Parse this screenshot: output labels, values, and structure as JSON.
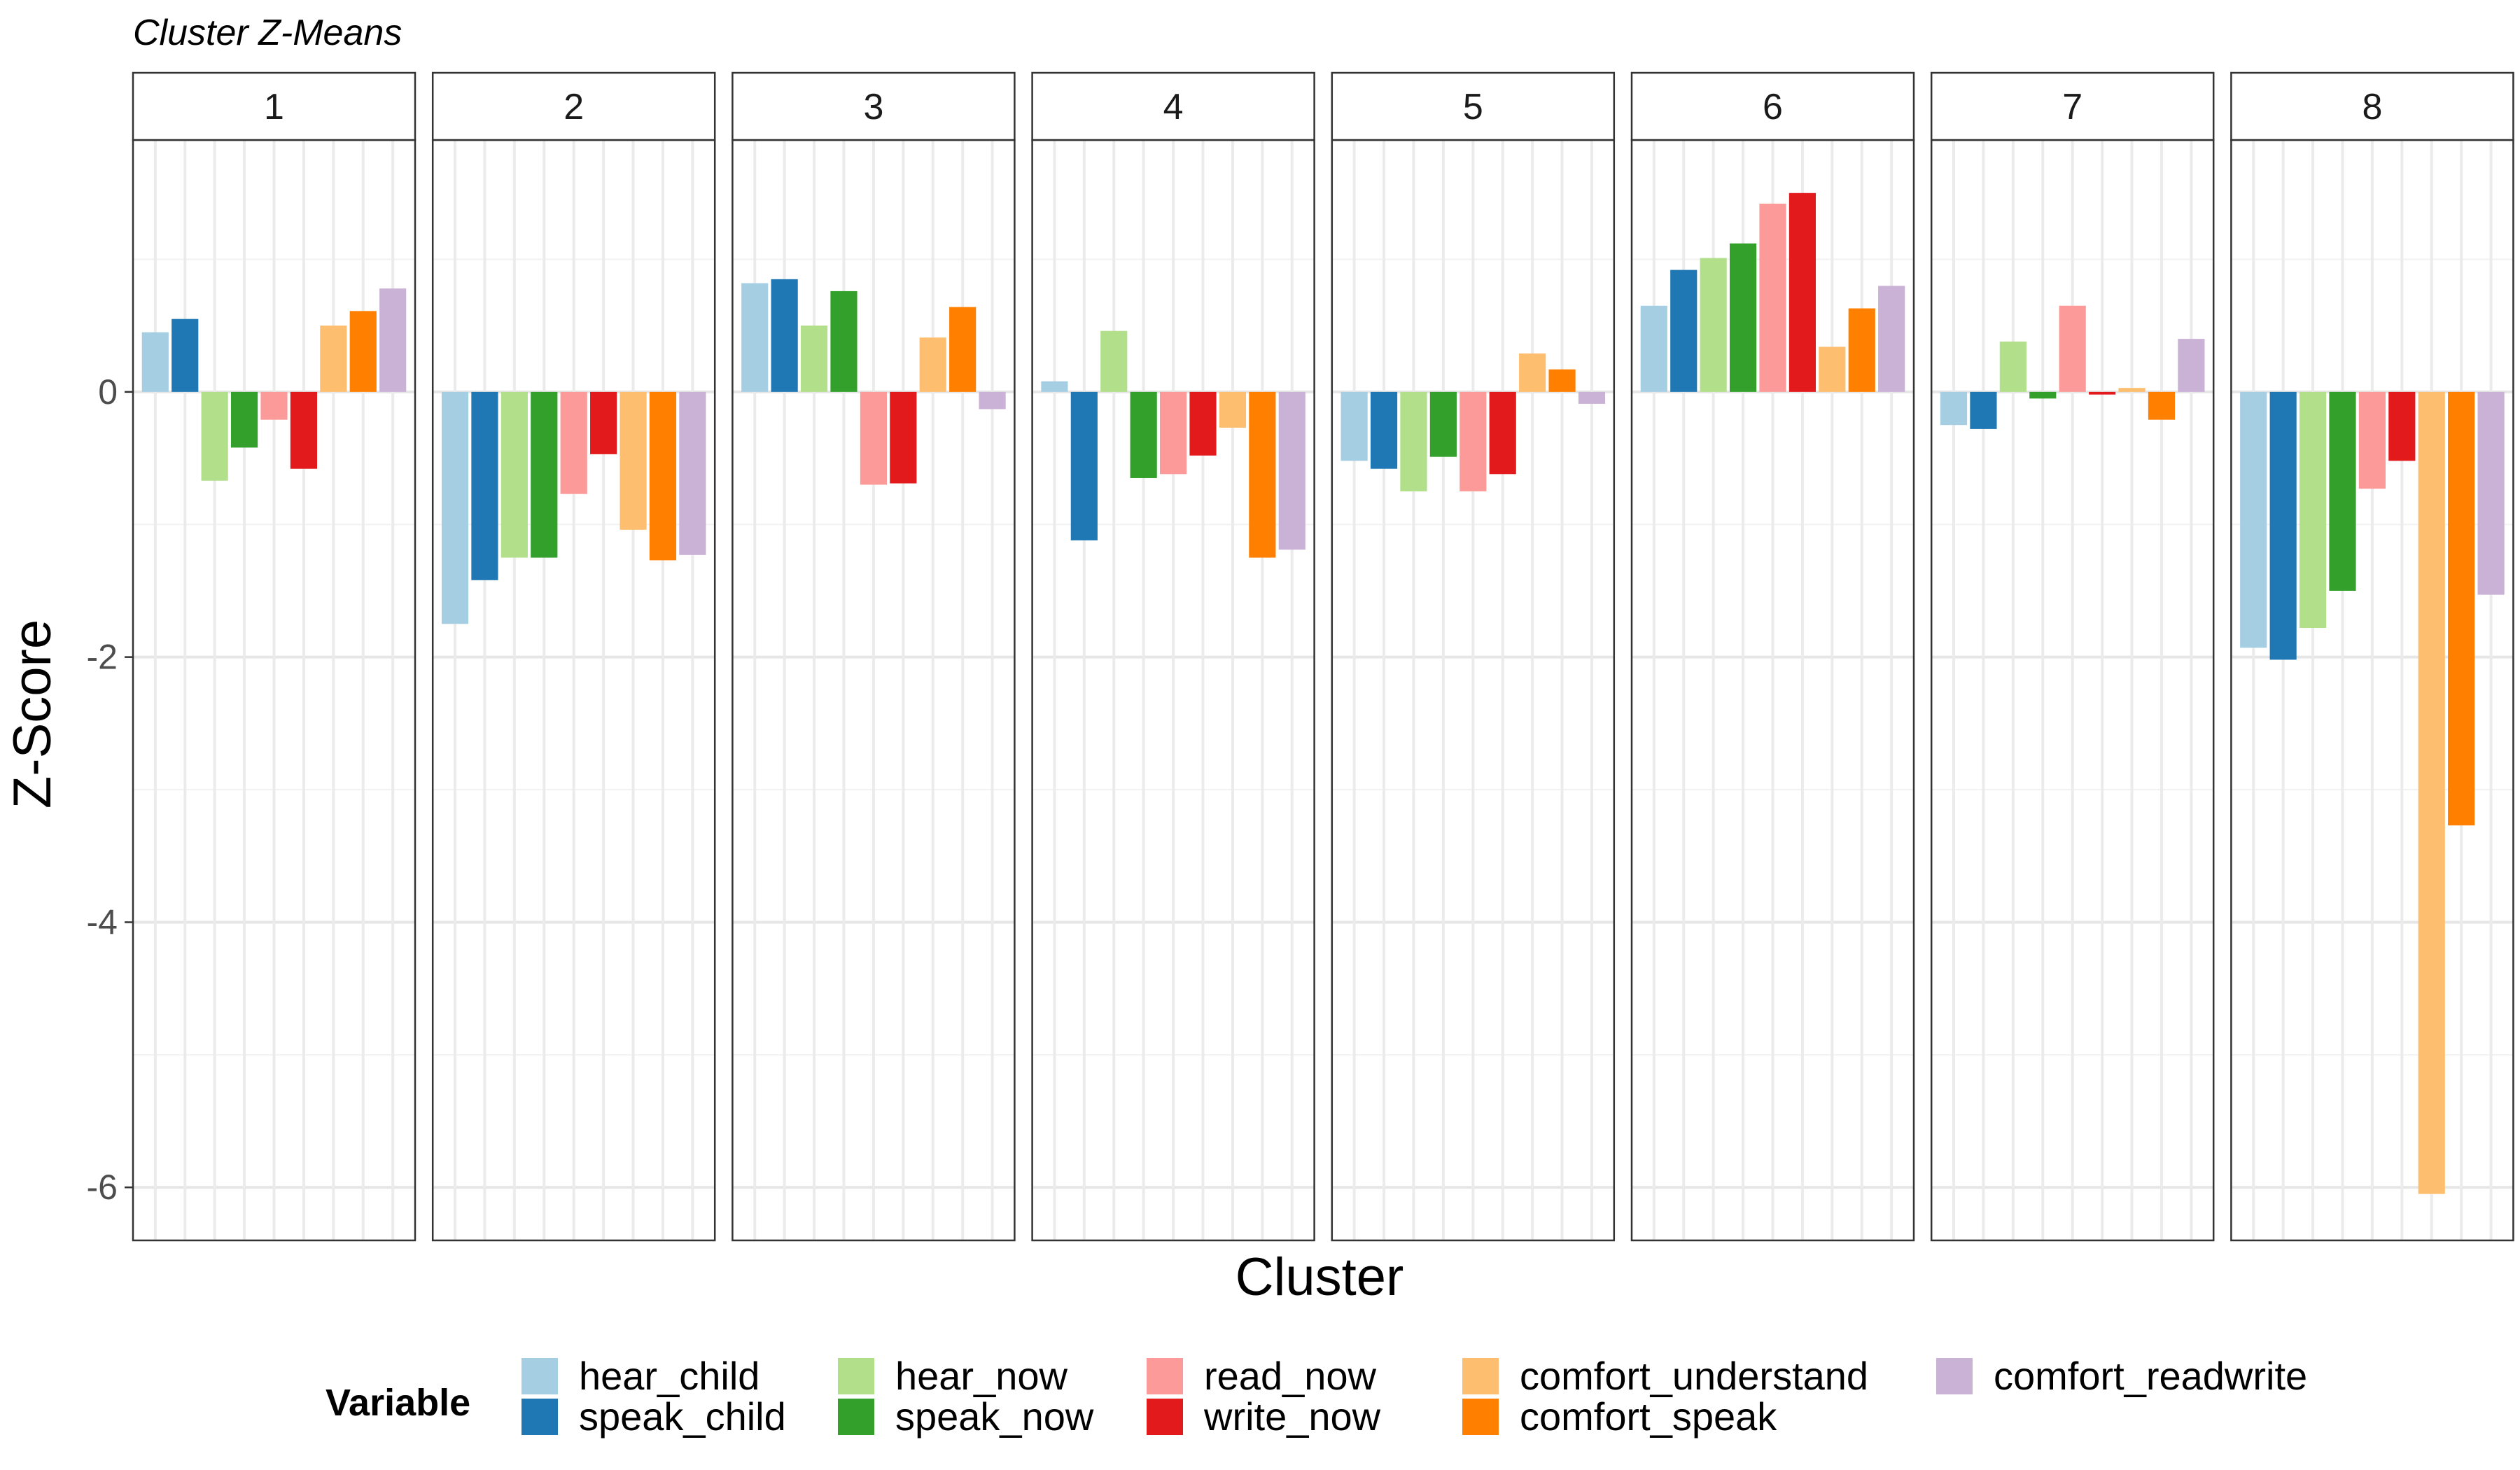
{
  "title": "Cluster Z-Means",
  "chart_data": {
    "type": "bar",
    "title": "Cluster Z-Means",
    "xlabel": "Cluster",
    "ylabel": "Z-Score",
    "ylim": [
      -6.4,
      1.9
    ],
    "yticks": [
      0,
      -2,
      -4,
      -6
    ],
    "ytick_labels": [
      "0",
      "-2",
      "-4",
      "-6"
    ],
    "grid": true,
    "legend_position": "bottom",
    "legend_title": "Variable",
    "panels": [
      "1",
      "2",
      "3",
      "4",
      "5",
      "6",
      "7",
      "8"
    ],
    "series": [
      {
        "name": "hear_child",
        "color": "#a6cee3",
        "values": [
          0.45,
          -1.75,
          0.82,
          0.08,
          -0.52,
          0.65,
          -0.25,
          -1.93
        ]
      },
      {
        "name": "speak_child",
        "color": "#1f78b4",
        "values": [
          0.55,
          -1.42,
          0.85,
          -1.12,
          -0.58,
          0.92,
          -0.28,
          -2.02
        ]
      },
      {
        "name": "hear_now",
        "color": "#b2df8a",
        "values": [
          -0.67,
          -1.25,
          0.5,
          0.46,
          -0.75,
          1.01,
          0.38,
          -1.78
        ]
      },
      {
        "name": "speak_now",
        "color": "#33a02c",
        "values": [
          -0.42,
          -1.25,
          0.76,
          -0.65,
          -0.49,
          1.12,
          -0.05,
          -1.5
        ]
      },
      {
        "name": "read_now",
        "color": "#fb9a99",
        "values": [
          -0.21,
          -0.77,
          -0.7,
          -0.62,
          -0.75,
          1.42,
          0.65,
          -0.73
        ]
      },
      {
        "name": "write_now",
        "color": "#e31a1c",
        "values": [
          -0.58,
          -0.47,
          -0.69,
          -0.48,
          -0.62,
          1.5,
          -0.02,
          -0.52
        ]
      },
      {
        "name": "comfort_understand",
        "color": "#fdbf6f",
        "values": [
          0.5,
          -1.04,
          0.41,
          -0.27,
          0.29,
          0.34,
          0.03,
          -6.05
        ]
      },
      {
        "name": "comfort_speak",
        "color": "#ff7f00",
        "values": [
          0.61,
          -1.27,
          0.64,
          -1.25,
          0.17,
          0.63,
          -0.21,
          -3.27
        ]
      },
      {
        "name": "comfort_readwrite",
        "color": "#cab2d6",
        "values": [
          0.78,
          -1.23,
          -0.13,
          -1.19,
          -0.09,
          0.8,
          0.4,
          -1.53
        ]
      }
    ]
  }
}
